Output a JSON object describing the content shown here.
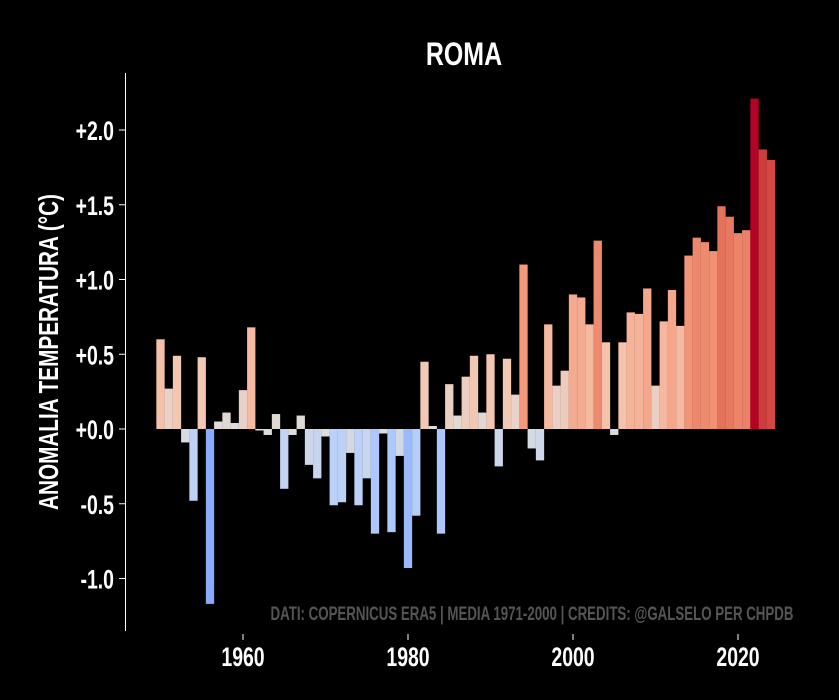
{
  "chart_data": {
    "type": "bar",
    "title": "ROMA",
    "xlabel": "",
    "ylabel": "ANOMALIA TEMPERATURA (°C)",
    "ylim": [
      -1.25,
      2.38
    ],
    "xlim": [
      1945,
      2030
    ],
    "yticks": [
      -1.0,
      -0.5,
      0.0,
      0.5,
      1.0,
      1.5,
      2.0
    ],
    "ytick_labels": [
      "-1.0",
      "-0.5",
      "+0.0",
      "+0.5",
      "+1.0",
      "+1.5",
      "+2.0"
    ],
    "xticks": [
      1960,
      1980,
      2000,
      2020
    ],
    "xtick_labels": [
      "1960",
      "1980",
      "2000",
      "2020"
    ],
    "grid": false,
    "colormap": "coolwarm",
    "color_range": [
      -2.21,
      2.21
    ],
    "annotation": "DATI: COPERNICUS ERA5 | MEDIA 1971-2000 | CREDITS: @GALSELO PER CHPDB",
    "colors": {
      "background": "#000000",
      "text": "#ffffff",
      "annotation": "#555555",
      "axis": "#ffffff"
    },
    "x": [
      1950,
      1951,
      1952,
      1953,
      1954,
      1955,
      1956,
      1957,
      1958,
      1959,
      1960,
      1961,
      1962,
      1963,
      1964,
      1965,
      1966,
      1967,
      1968,
      1969,
      1970,
      1971,
      1972,
      1973,
      1974,
      1975,
      1976,
      1977,
      1978,
      1979,
      1980,
      1981,
      1982,
      1983,
      1984,
      1985,
      1986,
      1987,
      1988,
      1989,
      1990,
      1991,
      1992,
      1993,
      1994,
      1995,
      1996,
      1997,
      1998,
      1999,
      2000,
      2001,
      2002,
      2003,
      2004,
      2005,
      2006,
      2007,
      2008,
      2009,
      2010,
      2011,
      2012,
      2013,
      2014,
      2015,
      2016,
      2017,
      2018,
      2019,
      2020,
      2021,
      2022,
      2023,
      2024
    ],
    "values": [
      0.6,
      0.27,
      0.49,
      -0.09,
      -0.48,
      0.48,
      -1.17,
      0.05,
      0.11,
      0.04,
      0.26,
      0.68,
      -0.01,
      -0.04,
      0.1,
      -0.4,
      -0.04,
      0.09,
      -0.24,
      -0.33,
      -0.05,
      -0.51,
      -0.49,
      -0.16,
      -0.51,
      -0.33,
      -0.7,
      -0.03,
      -0.69,
      -0.18,
      -0.93,
      -0.58,
      0.45,
      0.02,
      -0.7,
      0.3,
      0.09,
      0.35,
      0.49,
      0.11,
      0.5,
      -0.25,
      0.47,
      0.23,
      1.1,
      -0.13,
      -0.21,
      0.7,
      0.29,
      0.39,
      0.9,
      0.88,
      0.7,
      1.26,
      0.58,
      -0.04,
      0.58,
      0.78,
      0.77,
      0.94,
      0.29,
      0.72,
      0.93,
      0.69,
      1.16,
      1.28,
      1.25,
      1.19,
      1.49,
      1.42,
      1.31,
      1.33,
      2.21,
      1.87,
      1.8
    ]
  }
}
